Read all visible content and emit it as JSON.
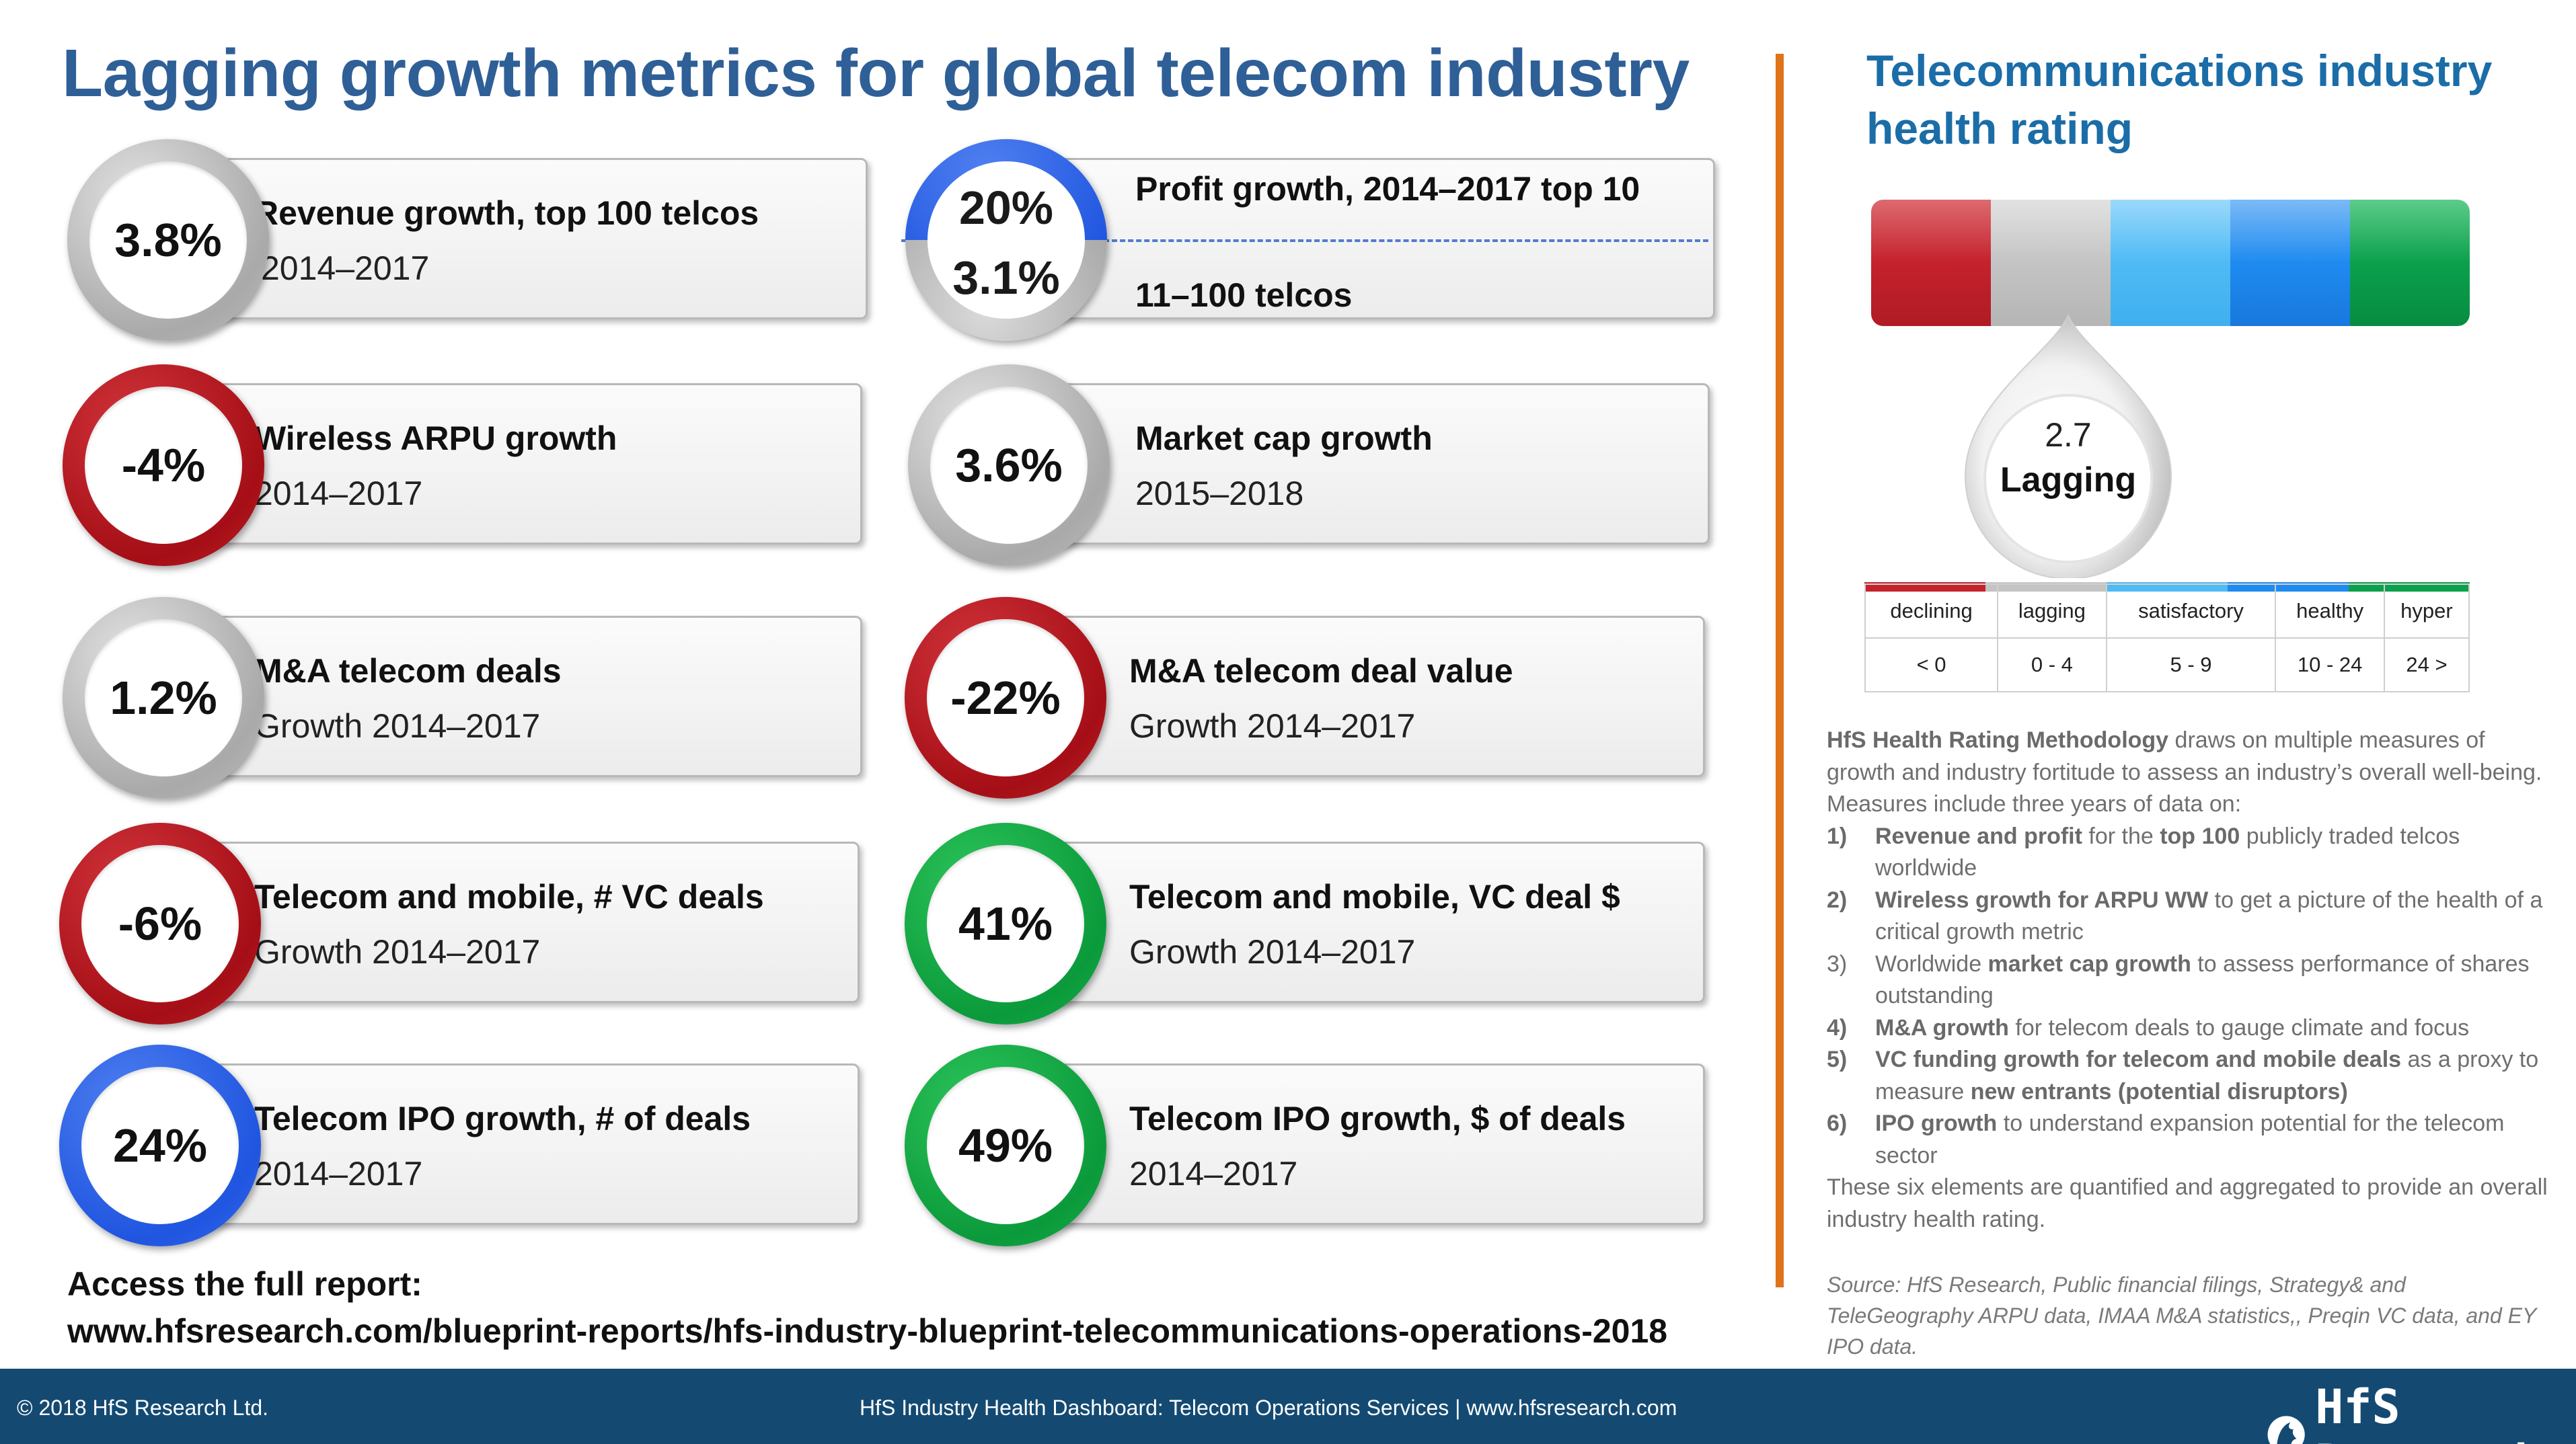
{
  "title": "Lagging growth metrics for global telecom industry",
  "metrics": [
    {
      "value": "3.8%",
      "label1": "Revenue growth, top 100 telcos",
      "label2": "2014–2017",
      "color": "grey"
    },
    {
      "value": "-4%",
      "label1": "Wireless ARPU growth",
      "label2": "2014–2017",
      "color": "red"
    },
    {
      "value": "3.6%",
      "label1": "Market cap growth",
      "label2": "2015–2018",
      "color": "grey"
    },
    {
      "value": "1.2%",
      "label1": "M&A telecom deals",
      "label2": "Growth 2014–2017",
      "color": "grey"
    },
    {
      "value": "-22%",
      "label1": "M&A telecom deal value",
      "label2": "Growth 2014–2017",
      "color": "red"
    },
    {
      "value": "-6%",
      "label1": "Telecom and mobile, # VC deals",
      "label2": "Growth 2014–2017",
      "color": "red"
    },
    {
      "value": "41%",
      "label1": "Telecom and mobile, VC deal $",
      "label2": "Growth 2014–2017",
      "color": "green"
    },
    {
      "value": "24%",
      "label1": "Telecom IPO growth, # of deals",
      "label2": "2014–2017",
      "color": "blue"
    },
    {
      "value": "49%",
      "label1": "Telecom IPO growth, $ of deals",
      "label2": "2014–2017",
      "color": "green"
    }
  ],
  "profit": {
    "value_top": "20%",
    "value_bottom": "3.1%",
    "label_top": "Profit growth, 2014–2017 top 10",
    "label_bottom": "11–100 telcos"
  },
  "access": {
    "line1": "Access the full report:",
    "line2": "www.hfsresearch.com/blueprint-reports/hfs-industry-blueprint-telecommunications-operations-2018"
  },
  "rating": {
    "title_line1": "Telecommunications industry",
    "title_line2": "health rating",
    "score": "2.7",
    "status": "Lagging",
    "colors": [
      "#c4222c",
      "#c4c4c4",
      "#4fbaf5",
      "#1f8bf0",
      "#0ba04c"
    ],
    "scale": [
      {
        "name": "declining",
        "range": "< 0"
      },
      {
        "name": "lagging",
        "range": "0 - 4"
      },
      {
        "name": "satisfactory",
        "range": "5 - 9"
      },
      {
        "name": "healthy",
        "range": "10 - 24"
      },
      {
        "name": "hyper",
        "range": "24 >"
      }
    ]
  },
  "methodology": {
    "intro_bold": "HfS Health Rating Methodology",
    "intro_rest": " draws on multiple measures of growth and industry fortitude to assess an industry’s overall well-being. Measures include three years of data on:",
    "items": [
      {
        "num": "1)",
        "b1": "Revenue and profit",
        "t1": " for the ",
        "b2": "top 100",
        "t2": " publicly traded telcos worldwide"
      },
      {
        "num": "2)",
        "b1": "Wireless growth for ARPU WW",
        "t1": " to get a picture of the health of a critical growth metric",
        "b2": "",
        "t2": ""
      },
      {
        "num": "3)",
        "b1": "",
        "t1": "Worldwide ",
        "b2": "market cap growth",
        "t2": " to assess performance of shares outstanding"
      },
      {
        "num": "4)",
        "b1": "M&A growth",
        "t1": " for telecom deals to gauge climate and focus",
        "b2": "",
        "t2": ""
      },
      {
        "num": "5)",
        "b1": "VC funding growth for telecom and mobile deals",
        "t1": " as a proxy to measure ",
        "b2": "new entrants (potential disruptors)",
        "t2": ""
      },
      {
        "num": "6)",
        "b1": "IPO growth",
        "t1": " to understand expansion potential for the telecom sector",
        "b2": "",
        "t2": ""
      }
    ],
    "outro": "These six elements are quantified and aggregated to provide an overall industry health rating.",
    "source": "Source: HfS Research, Public financial filings, Strategy& and TeleGeography ARPU data, IMAA M&A statistics,, Preqin VC data, and EY IPO data."
  },
  "footer": {
    "copyright": "© 2018 HfS Research Ltd.",
    "center": "HfS Industry Health Dashboard: Telecom Operations Services | www.hfsresearch.com",
    "logo_text": "HfS Research"
  }
}
